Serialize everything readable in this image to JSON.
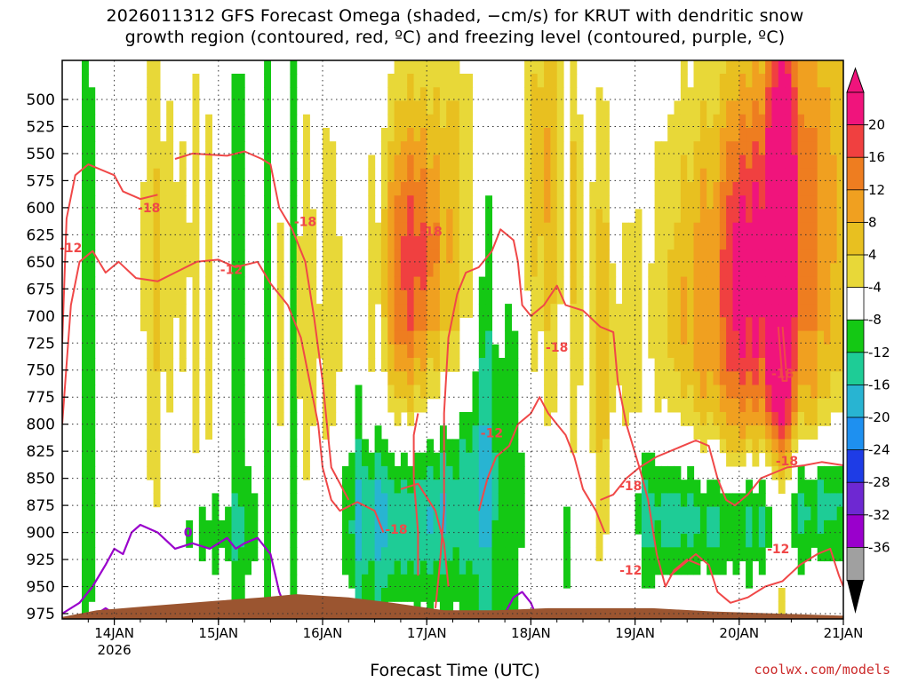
{
  "title_line1": "2026011312 GFS Forecast Omega (shaded, −cm/s) for KRUT with dendritic snow",
  "title_line2": "growth region (contoured, red, ºC) and freezing level (contoured, purple, ºC)",
  "xlabel": "Forecast Time (UTC)",
  "credit": "coolwx.com/models",
  "colors": {
    "dendritic_contour": "#f04848",
    "freezing_contour": "#9a00cc",
    "terrain": "#9b5530",
    "grid": "#333333"
  },
  "chart_data": {
    "type": "heatmap",
    "y_scale": "pressure (hPa), inverted",
    "ylim": [
      980,
      470
    ],
    "yticks": [
      500,
      525,
      550,
      575,
      600,
      625,
      650,
      675,
      700,
      725,
      750,
      775,
      800,
      825,
      850,
      875,
      900,
      925,
      950,
      975
    ],
    "xlim": [
      "2026-01-13T12",
      "2026-01-21T00"
    ],
    "xticks": [
      {
        "label": "14JAN",
        "sub": "2026",
        "t": "2026-01-14T00"
      },
      {
        "label": "15JAN",
        "sub": "",
        "t": "2026-01-15T00"
      },
      {
        "label": "16JAN",
        "sub": "",
        "t": "2026-01-16T00"
      },
      {
        "label": "17JAN",
        "sub": "",
        "t": "2026-01-17T00"
      },
      {
        "label": "18JAN",
        "sub": "",
        "t": "2026-01-18T00"
      },
      {
        "label": "19JAN",
        "sub": "",
        "t": "2026-01-19T00"
      },
      {
        "label": "20JAN",
        "sub": "",
        "t": "2026-01-20T00"
      },
      {
        "label": "21JAN",
        "sub": "",
        "t": "2026-01-21T00"
      }
    ],
    "colorbar": {
      "labels": [
        20,
        16,
        12,
        8,
        4,
        -4,
        -8,
        -12,
        -16,
        -20,
        -24,
        -28,
        -32,
        -36
      ],
      "bins": [
        {
          "max": 24,
          "color": "#f0147c"
        },
        {
          "max": 20,
          "color": "#f04040"
        },
        {
          "max": 16,
          "color": "#ee7d20"
        },
        {
          "max": 12,
          "color": "#f0a020"
        },
        {
          "max": 8,
          "color": "#e8c020"
        },
        {
          "max": 4,
          "color": "#e8d838"
        },
        {
          "max": -4,
          "color": "#ffffff"
        },
        {
          "max": -8,
          "color": "#14c814"
        },
        {
          "max": -12,
          "color": "#1ecc96"
        },
        {
          "max": -16,
          "color": "#28b4d2"
        },
        {
          "max": -20,
          "color": "#1e90f0"
        },
        {
          "max": -24,
          "color": "#1e3ce6"
        },
        {
          "max": -28,
          "color": "#6e28d2"
        },
        {
          "max": -32,
          "color": "#9a00cc"
        },
        {
          "max": -36,
          "color": "#a0a0a0"
        }
      ],
      "top_triangle_color": "#f0147c",
      "bottom_triangle_color": "#000000"
    },
    "contour_labels": [
      {
        "text": "-18",
        "t": "2026-01-14T08",
        "p": 600,
        "series": "dendritic"
      },
      {
        "text": "-12",
        "t": "2026-01-13T14",
        "p": 637,
        "series": "dendritic"
      },
      {
        "text": "-12",
        "t": "2026-01-15T03",
        "p": 657,
        "series": "dendritic"
      },
      {
        "text": "-18",
        "t": "2026-01-15T20",
        "p": 613,
        "series": "dendritic"
      },
      {
        "text": "-18",
        "t": "2026-01-17T01",
        "p": 622,
        "series": "dendritic"
      },
      {
        "text": "-18",
        "t": "2026-01-18T06",
        "p": 729,
        "series": "dendritic"
      },
      {
        "text": "-12",
        "t": "2026-01-17T15",
        "p": 808,
        "series": "dendritic"
      },
      {
        "text": "-18",
        "t": "2026-01-16T17",
        "p": 897,
        "series": "dendritic"
      },
      {
        "text": "-18",
        "t": "2026-01-18T23",
        "p": 857,
        "series": "dendritic"
      },
      {
        "text": "-12",
        "t": "2026-01-18T23",
        "p": 935,
        "series": "dendritic"
      },
      {
        "text": "-18",
        "t": "2026-01-20T10",
        "p": 753,
        "series": "dendritic"
      },
      {
        "text": "-18",
        "t": "2026-01-20T11",
        "p": 834,
        "series": "dendritic"
      },
      {
        "text": "-12",
        "t": "2026-01-20T09",
        "p": 915,
        "series": "dendritic"
      },
      {
        "text": "0",
        "t": "2026-01-14T17",
        "p": 900,
        "series": "freezing"
      }
    ]
  }
}
